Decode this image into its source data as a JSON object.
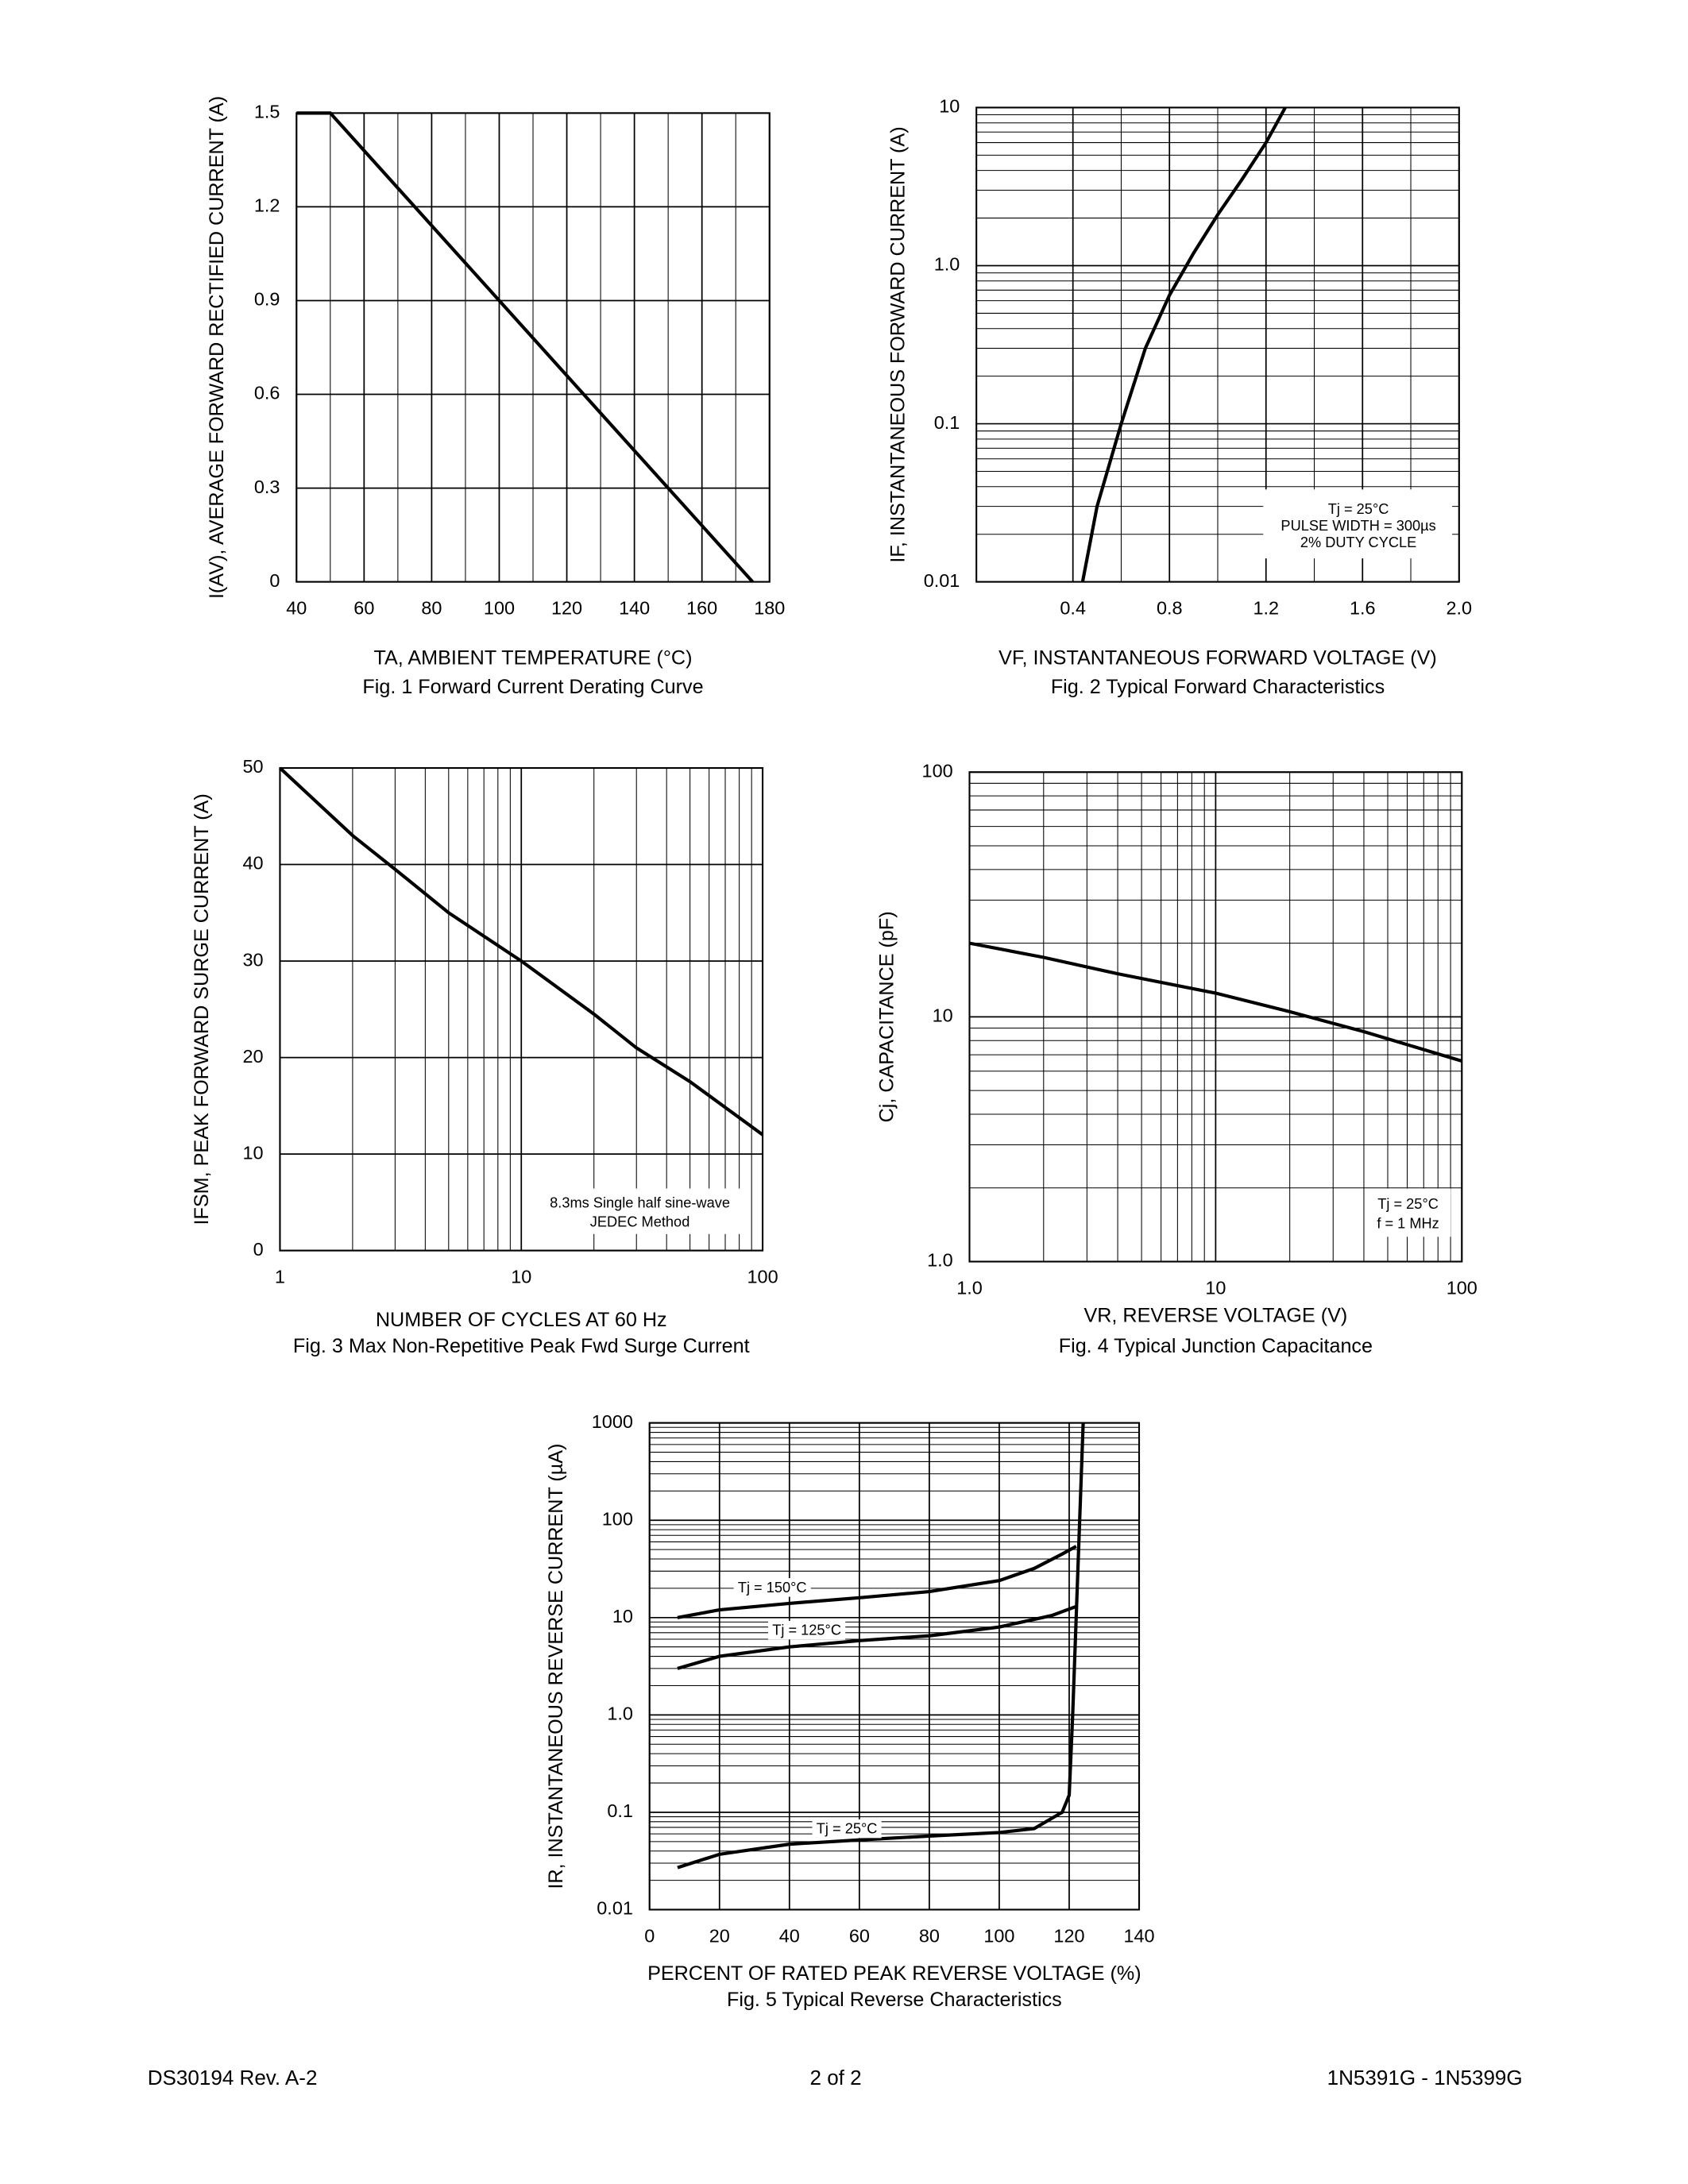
{
  "chart_data": [
    {
      "type": "line",
      "xlabel": "TA, AMBIENT TEMPERATURE (°C)",
      "ylabel": "I(AV), AVERAGE FORWARD RECTIFIED CURRENT (A)",
      "caption": "Fig. 1  Forward Current Derating Curve",
      "xlim": [
        40,
        180
      ],
      "ylim": [
        0,
        1.5
      ],
      "xticks": [
        40,
        60,
        80,
        100,
        120,
        140,
        160,
        180
      ],
      "yticks": [
        0,
        0.3,
        0.6,
        0.9,
        1.2,
        1.5
      ],
      "grid": true,
      "series": [
        {
          "color": "#000000",
          "x": [
            40,
            50,
            175
          ],
          "values": [
            1.5,
            1.5,
            0
          ]
        }
      ]
    },
    {
      "type": "line",
      "xlabel": "VF, INSTANTANEOUS FORWARD VOLTAGE (V)",
      "ylabel": "IF, INSTANTANEOUS FORWARD CURRENT (A)",
      "caption": "Fig. 2 Typical Forward Characteristics",
      "xlim": [
        0,
        2
      ],
      "ylim": [
        0.01,
        10
      ],
      "ylog": true,
      "xticks": [
        0.4,
        0.8,
        1.2,
        1.6,
        {
          "value": 2,
          "label": "2.0"
        }
      ],
      "yticks": [
        0.01,
        0.1,
        {
          "value": 1,
          "label": "1.0"
        },
        10
      ],
      "grid": true,
      "annotations": [
        "Tj = 25°C",
        "PULSE WIDTH = 300µs",
        "2% DUTY CYCLE"
      ],
      "series": [
        {
          "color": "#000000",
          "x": [
            0.44,
            0.5,
            0.6,
            0.7,
            0.8,
            0.9,
            1.0,
            1.1,
            1.2,
            1.28
          ],
          "values": [
            0.01,
            0.03,
            0.1,
            0.3,
            0.65,
            1.2,
            2.1,
            3.5,
            6,
            10
          ]
        }
      ]
    },
    {
      "type": "line",
      "xlabel": "NUMBER OF CYCLES AT 60 Hz",
      "ylabel": "IFSM, PEAK FORWARD SURGE CURRENT (A)",
      "caption": "Fig. 3  Max Non-Repetitive Peak Fwd Surge Current",
      "xlim": [
        1,
        100
      ],
      "ylim": [
        0,
        50
      ],
      "xlog": true,
      "xticks": [
        1,
        10,
        100
      ],
      "yticks": [
        0,
        10,
        20,
        30,
        40,
        50
      ],
      "grid": true,
      "annotations": [
        "8.3ms Single half sine-wave",
        "JEDEC Method"
      ],
      "series": [
        {
          "color": "#000000",
          "x": [
            1,
            2,
            3,
            5,
            10,
            20,
            30,
            50,
            100
          ],
          "values": [
            50,
            43,
            39.5,
            35,
            30,
            24.5,
            21,
            17.5,
            12
          ]
        }
      ]
    },
    {
      "type": "line",
      "xlabel": "VR, REVERSE VOLTAGE (V)",
      "ylabel": "Cj, CAPACITANCE (pF)",
      "caption": "Fig. 4  Typical Junction Capacitance",
      "xlim": [
        1,
        100
      ],
      "ylim": [
        1,
        100
      ],
      "xlog": true,
      "ylog": true,
      "xticks": [
        {
          "value": 1,
          "label": "1.0"
        },
        10,
        100
      ],
      "yticks": [
        {
          "value": 1,
          "label": "1.0"
        },
        10,
        100
      ],
      "grid": true,
      "annotations": [
        "Tj = 25°C",
        "f = 1 MHz"
      ],
      "series": [
        {
          "color": "#000000",
          "x": [
            1,
            2,
            4,
            10,
            20,
            40,
            100
          ],
          "values": [
            20,
            17.5,
            15,
            12.5,
            10.5,
            8.7,
            6.6
          ]
        }
      ]
    },
    {
      "type": "line",
      "xlabel": "PERCENT OF RATED PEAK REVERSE VOLTAGE (%)",
      "ylabel": "IR, INSTANTANEOUS REVERSE CURRENT (µA)",
      "caption": "Fig. 5  Typical Reverse Characteristics",
      "xlim": [
        0,
        140
      ],
      "ylim": [
        0.01,
        1000
      ],
      "ylog": true,
      "xticks": [
        0,
        20,
        40,
        60,
        80,
        100,
        120,
        140
      ],
      "yticks": [
        0.01,
        0.1,
        {
          "value": 1,
          "label": "1.0"
        },
        10,
        100,
        1000
      ],
      "grid": true,
      "series": [
        {
          "name": "Tj = 150°C",
          "color": "#000000",
          "x": [
            8,
            20,
            40,
            60,
            80,
            100,
            110,
            118,
            122
          ],
          "values": [
            10,
            12,
            14,
            16,
            18.5,
            24,
            32,
            45,
            54
          ]
        },
        {
          "name": "Tj = 125°C",
          "color": "#000000",
          "x": [
            8,
            20,
            40,
            60,
            80,
            100,
            115,
            122
          ],
          "values": [
            3,
            4,
            5,
            5.8,
            6.5,
            8,
            10.5,
            13
          ]
        },
        {
          "name": "Tj = 25°C",
          "color": "#000000",
          "x": [
            8,
            20,
            40,
            60,
            80,
            100,
            110,
            118,
            120,
            121,
            122,
            123,
            124
          ],
          "values": [
            0.027,
            0.037,
            0.047,
            0.052,
            0.057,
            0.062,
            0.068,
            0.1,
            0.15,
            1,
            10,
            100,
            1000
          ]
        }
      ]
    }
  ],
  "footer": {
    "left": "DS30194 Rev. A-2",
    "center": "2 of 2",
    "right": "1N5391G - 1N5399G"
  }
}
